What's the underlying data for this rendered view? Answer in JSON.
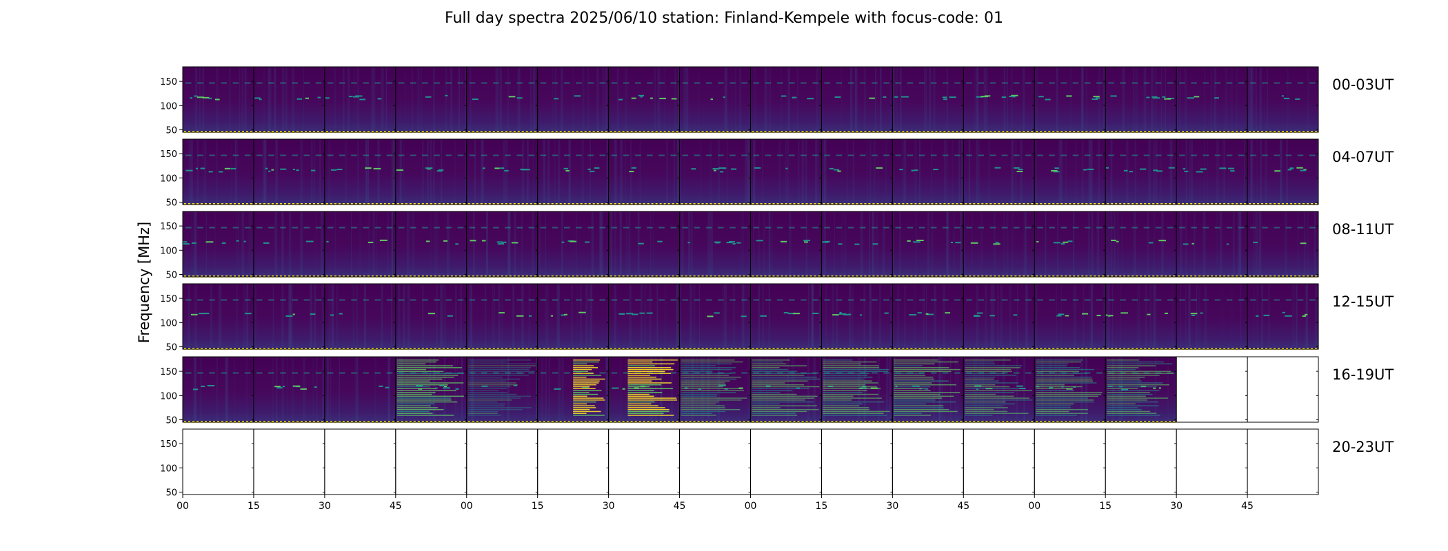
{
  "chart_data": {
    "type": "heatmap",
    "title": "Full day spectra 2025/06/10 station: Finland-Kempele with focus-code: 01",
    "ylabel": "Frequency [MHz]",
    "xlabel": "",
    "ylim": [
      45,
      180
    ],
    "y_ticks": [
      "150",
      "100",
      "50"
    ],
    "x_ticks": [
      "00",
      "15",
      "30",
      "45",
      "00",
      "15",
      "30",
      "45",
      "00",
      "15",
      "30",
      "45",
      "00",
      "15",
      "30",
      "45"
    ],
    "panels_per_row": 16,
    "panel_minutes": 15,
    "colormap": "viridis",
    "rows": [
      {
        "label": "00-03UT",
        "hours": "00-03",
        "panels_with_data": 16
      },
      {
        "label": "04-07UT",
        "hours": "04-07",
        "panels_with_data": 16
      },
      {
        "label": "08-11UT",
        "hours": "08-11",
        "panels_with_data": 16
      },
      {
        "label": "12-15UT",
        "hours": "12-15",
        "panels_with_data": 16
      },
      {
        "label": "16-19UT",
        "hours": "16-19",
        "panels_with_data": 14
      },
      {
        "label": "20-23UT",
        "hours": "20-23",
        "panels_with_data": 0
      }
    ],
    "colors": {
      "background": "#440154",
      "low": "#3b528b",
      "mid": "#21918c",
      "high": "#5ec962",
      "peak": "#fde725",
      "frame": "#000000"
    }
  }
}
